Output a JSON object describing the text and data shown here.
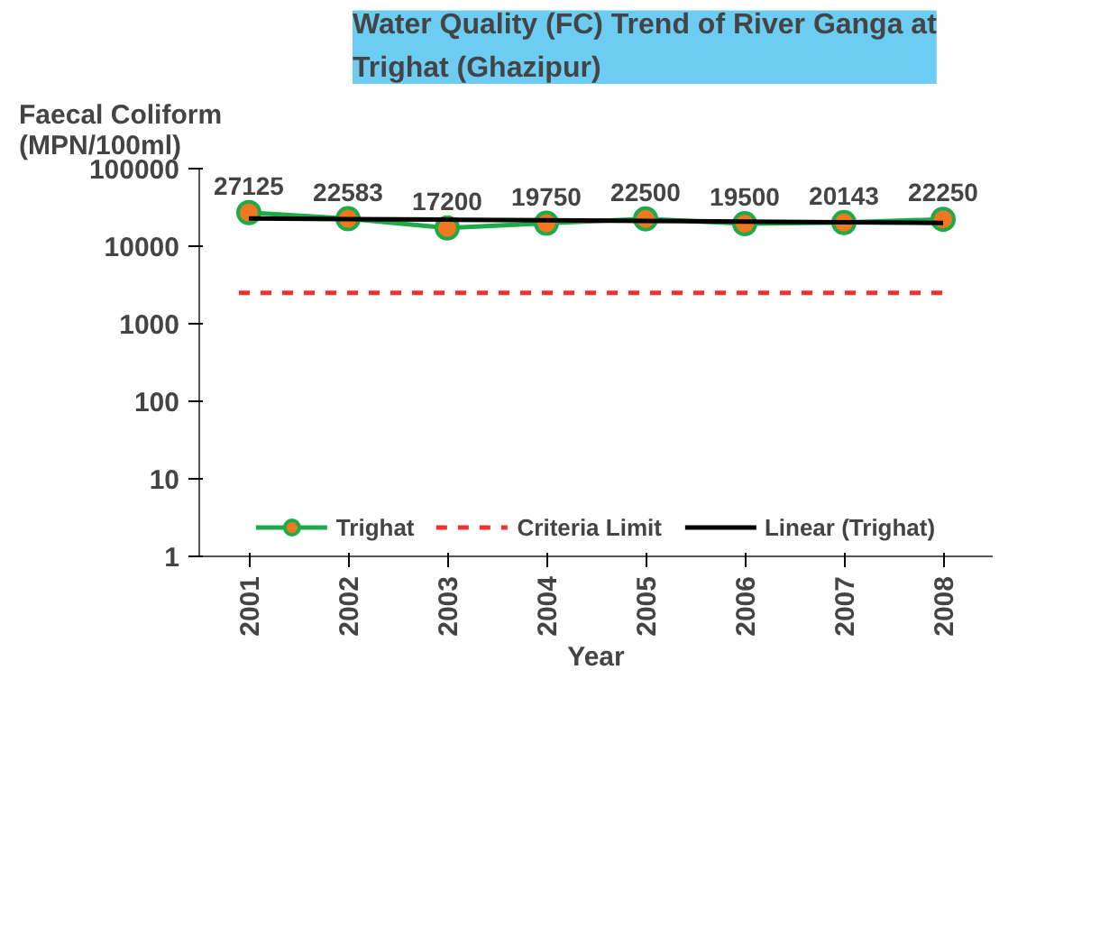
{
  "chart_data": {
    "type": "line",
    "title": "Water Quality (FC) Trend of River Ganga at\nTrighat (Ghazipur)",
    "xlabel": "Year",
    "ylabel": "Faecal Coliform\n(MPN/100ml)",
    "categories": [
      "2001",
      "2002",
      "2003",
      "2004",
      "2005",
      "2006",
      "2007",
      "2008"
    ],
    "series": [
      {
        "name": "Trighat",
        "color": "#1faa4a",
        "colors": [
          "#f07820",
          "#f07820",
          "#f07820",
          "#f07820",
          "#f07820",
          "#f07820",
          "#f07820",
          "#f07820"
        ],
        "values": [
          27125,
          22583,
          17200,
          19750,
          22500,
          19500,
          20143,
          22250
        ],
        "value_labels": [
          "27125",
          "22583",
          "17200",
          "19750",
          "22500",
          "19500",
          "20143",
          "22250"
        ],
        "marker": "circle"
      },
      {
        "name": "Linear (Trighat)",
        "color": "#000000",
        "values": [
          22800,
          22400,
          22000,
          21600,
          21200,
          20700,
          20300,
          19900
        ]
      }
    ],
    "ref_lines": [
      {
        "axis": "y",
        "value": 2500,
        "label": "Criteria Limit",
        "color": "#ee3333",
        "line_style": "dashed"
      }
    ],
    "log": true,
    "ylim": [
      1,
      100000
    ],
    "yticks": [
      1,
      10,
      100,
      1000,
      10000,
      100000
    ],
    "grid": false,
    "legend": "bottom"
  }
}
